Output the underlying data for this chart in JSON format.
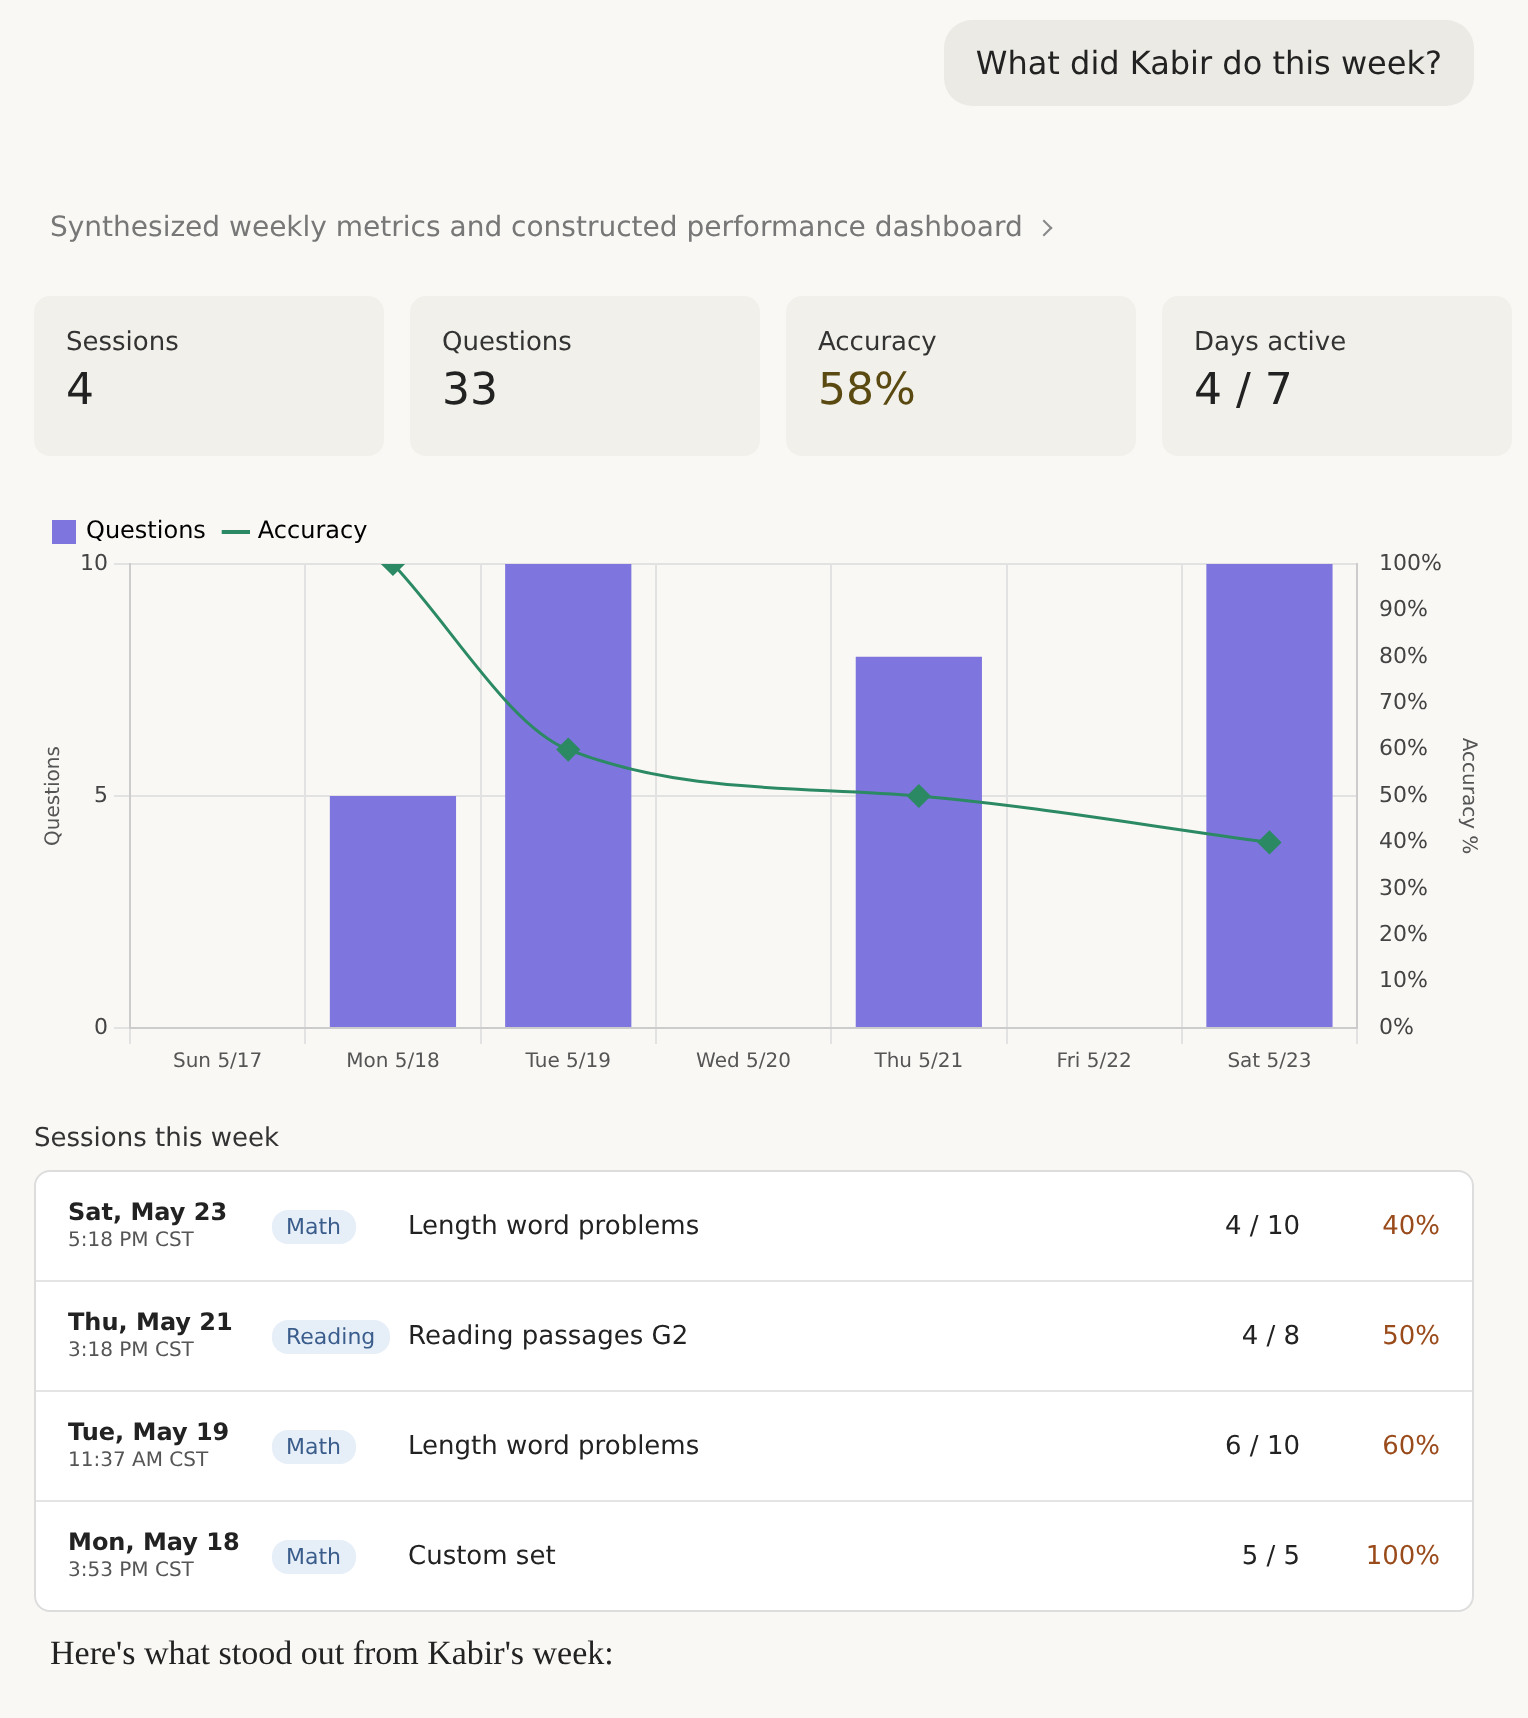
{
  "chart_data": [
    {
      "type": "other",
      "annotations": [
        "What did Kabir do this week?",
        "Synthesized weekly metrics and constructed performance dashboard",
        "Sessions",
        "4",
        "Questions",
        "33",
        "Accuracy",
        "58%",
        "Days active",
        "4 / 7"
      ]
    },
    {
      "type": "bar",
      "categories": [
        "Sun 5/17",
        "Mon 5/18",
        "Tue 5/19",
        "Wed 5/20",
        "Thu 5/21",
        "Fri 5/22",
        "Sat 5/23"
      ],
      "series": [
        {
          "name": "Questions",
          "type": "bar",
          "color": "#7f75de",
          "values": [
            null,
            5,
            10,
            null,
            8,
            null,
            10
          ]
        },
        {
          "name": "Accuracy",
          "type": "line",
          "axis": "y2",
          "color": "#2b8a63",
          "marker": "diamond",
          "values": [
            null,
            100,
            60,
            null,
            50,
            null,
            40
          ]
        }
      ],
      "ylabel": "Questions",
      "y2label": "Accuracy %",
      "ylim": [
        0,
        10
      ],
      "yticks": [
        0,
        5,
        10
      ],
      "y2lim": [
        0,
        100
      ],
      "y2ticks": [
        {
          "value": 0,
          "label": "0%"
        },
        {
          "value": 10,
          "label": "10%"
        },
        {
          "value": 20,
          "label": "20%"
        },
        {
          "value": 30,
          "label": "30%"
        },
        {
          "value": 40,
          "label": "40%"
        },
        {
          "value": 50,
          "label": "50%"
        },
        {
          "value": 60,
          "label": "60%"
        },
        {
          "value": 70,
          "label": "70%"
        },
        {
          "value": 80,
          "label": "80%"
        },
        {
          "value": 90,
          "label": "90%"
        },
        {
          "value": 100,
          "label": "100%"
        }
      ],
      "grid": true,
      "legend": "top left"
    },
    {
      "type": "other",
      "title": "Sessions this week",
      "annotations": [
        "Sat, May 23",
        "5:18 PM CST",
        "Math",
        "Length word problems",
        "4 / 10",
        "40%",
        "Thu, May 21",
        "3:18 PM CST",
        "Reading",
        "Reading passages G2",
        "4 / 8",
        "50%",
        "Tue, May 19",
        "11:37 AM CST",
        "Math",
        "Length word problems",
        "6 / 10",
        "60%",
        "Mon, May 18",
        "3:53 PM CST",
        "Math",
        "Custom set",
        "5 / 5",
        "100%",
        "Here's what stood out from Kabir's week:"
      ]
    }
  ]
}
